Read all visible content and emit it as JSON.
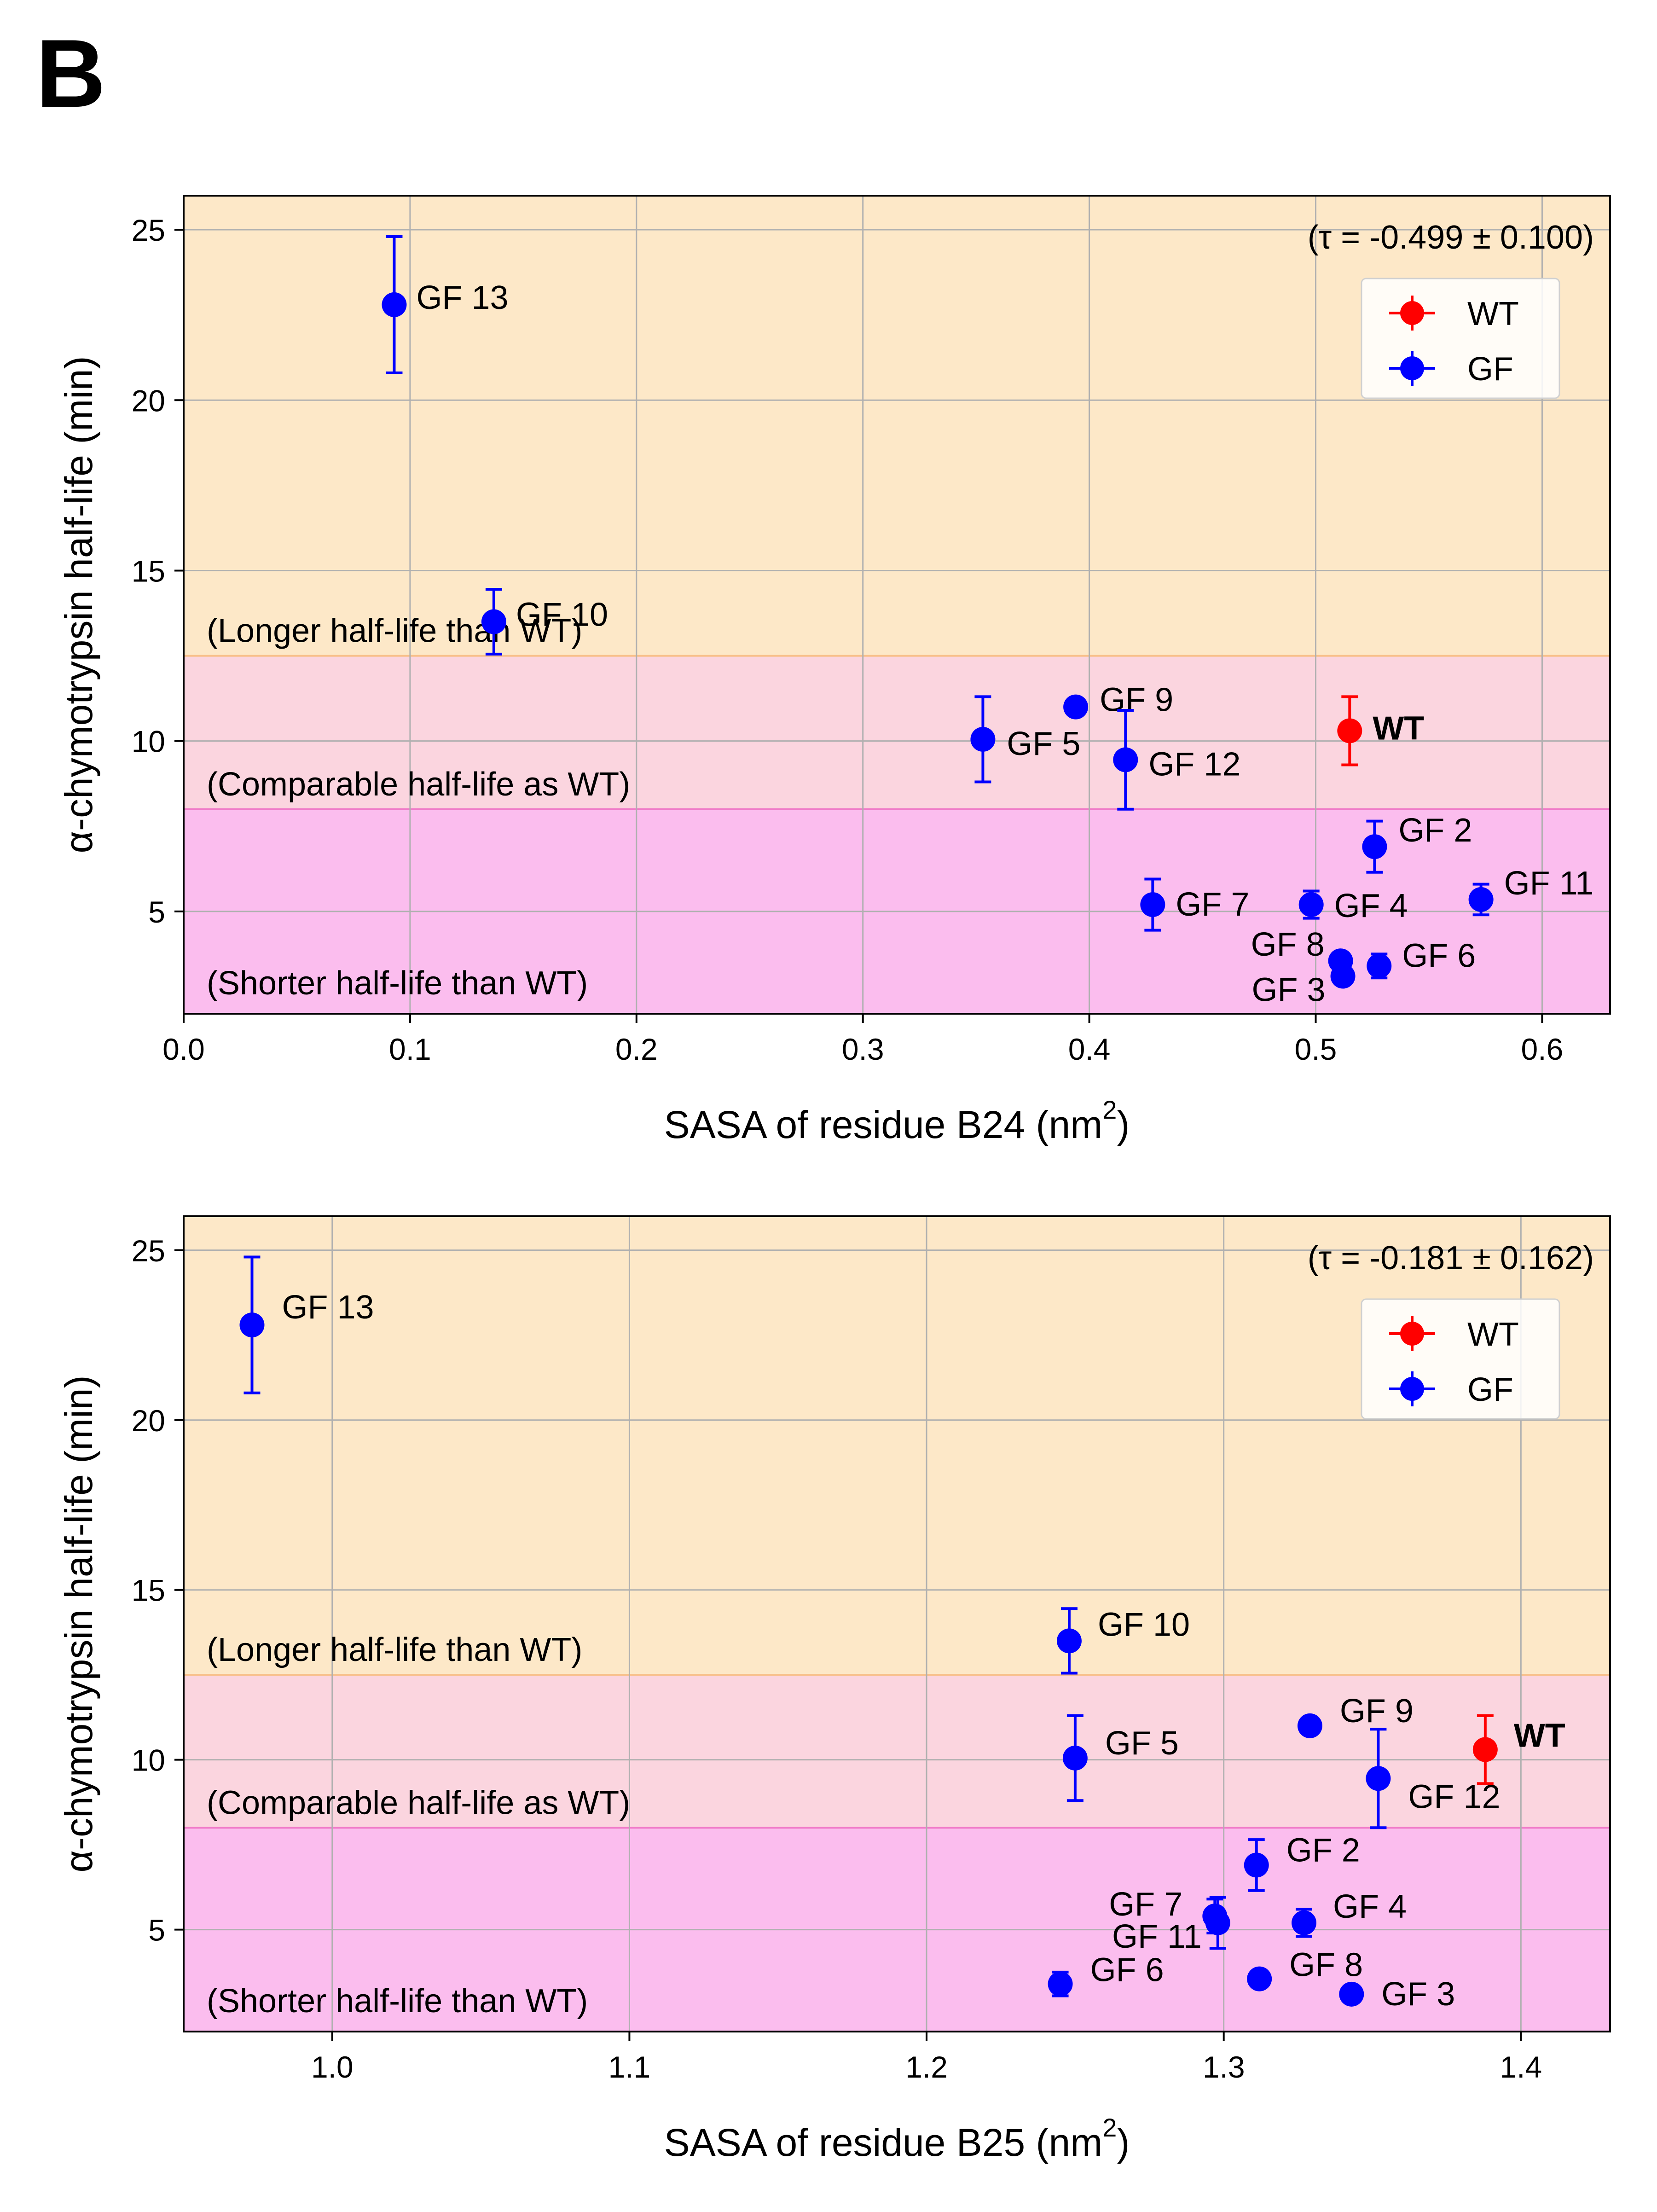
{
  "panel_label": "B",
  "colors": {
    "wt": "#ff0000",
    "gf": "#0000ff",
    "band_longer": "#fde8c8",
    "band_comparable": "#fbd5df",
    "band_shorter": "#fbbdee",
    "band_line_top": "#f8c08a",
    "band_line_bottom": "#f07ac8",
    "grid": "#b0b0b0"
  },
  "chart_data": [
    {
      "type": "scatter",
      "error_bars": true,
      "title": "",
      "xlabel": "SASA of residue B24 (nm",
      "xlabel_sup": "2",
      "xlabel_end": ")",
      "ylabel": "α-chymotrypsin half-life (min)",
      "xlim": [
        0.0,
        0.63
      ],
      "ylim": [
        2.0,
        26.0
      ],
      "xticks": [
        "0.0",
        "0.1",
        "0.2",
        "0.3",
        "0.4",
        "0.5",
        "0.6"
      ],
      "xtick_values": [
        0.0,
        0.1,
        0.2,
        0.3,
        0.4,
        0.5,
        0.6
      ],
      "yticks": [
        "5",
        "10",
        "15",
        "20",
        "25"
      ],
      "ytick_values": [
        5,
        10,
        15,
        20,
        25
      ],
      "grid": true,
      "tau_text": "(τ = -0.499 ± 0.100)",
      "legend": {
        "position": "upper right",
        "entries": [
          "WT",
          "GF"
        ]
      },
      "bands": [
        {
          "label": "(Longer half-life than WT)",
          "from": 12.5,
          "to": 26.0,
          "type": "longer"
        },
        {
          "label": "(Comparable half-life as WT)",
          "from": 8.0,
          "to": 12.5,
          "type": "comparable"
        },
        {
          "label": "(Shorter half-life than WT)",
          "from": 2.0,
          "to": 8.0,
          "type": "shorter"
        }
      ],
      "points": [
        {
          "label": "GF 13",
          "x": 0.093,
          "y": 22.8,
          "err": 2.0,
          "series": "GF"
        },
        {
          "label": "GF 10",
          "x": 0.137,
          "y": 13.5,
          "err": 0.95,
          "series": "GF"
        },
        {
          "label": "GF 9",
          "x": 0.394,
          "y": 11.0,
          "err": 0.0,
          "series": "GF"
        },
        {
          "label": "GF 5",
          "x": 0.353,
          "y": 10.05,
          "err": 1.25,
          "series": "GF"
        },
        {
          "label": "GF 12",
          "x": 0.416,
          "y": 9.45,
          "err": 1.45,
          "series": "GF"
        },
        {
          "label": "WT",
          "x": 0.515,
          "y": 10.3,
          "err": 1.0,
          "series": "WT"
        },
        {
          "label": "GF 2",
          "x": 0.526,
          "y": 6.9,
          "err": 0.75,
          "series": "GF"
        },
        {
          "label": "GF 7",
          "x": 0.428,
          "y": 5.2,
          "err": 0.75,
          "series": "GF"
        },
        {
          "label": "GF 4",
          "x": 0.498,
          "y": 5.2,
          "err": 0.4,
          "series": "GF"
        },
        {
          "label": "GF 11",
          "x": 0.573,
          "y": 5.35,
          "err": 0.45,
          "series": "GF"
        },
        {
          "label": "GF 8",
          "x": 0.511,
          "y": 3.55,
          "err": 0.0,
          "series": "GF"
        },
        {
          "label": "GF 3",
          "x": 0.512,
          "y": 3.1,
          "err": 0.0,
          "series": "GF"
        },
        {
          "label": "GF 6",
          "x": 0.528,
          "y": 3.4,
          "err": 0.35,
          "series": "GF"
        }
      ]
    },
    {
      "type": "scatter",
      "error_bars": true,
      "title": "",
      "xlabel": "SASA of residue B25 (nm",
      "xlabel_sup": "2",
      "xlabel_end": ")",
      "ylabel": "α-chymotrypsin half-life (min)",
      "xlim": [
        0.95,
        1.43
      ],
      "ylim": [
        2.0,
        26.0
      ],
      "xticks": [
        "1.0",
        "1.1",
        "1.2",
        "1.3",
        "1.4"
      ],
      "xtick_values": [
        1.0,
        1.1,
        1.2,
        1.3,
        1.4
      ],
      "yticks": [
        "5",
        "10",
        "15",
        "20",
        "25"
      ],
      "ytick_values": [
        5,
        10,
        15,
        20,
        25
      ],
      "grid": true,
      "tau_text": "(τ = -0.181 ± 0.162)",
      "legend": {
        "position": "upper right",
        "entries": [
          "WT",
          "GF"
        ]
      },
      "bands": [
        {
          "label": "(Longer half-life than WT)",
          "from": 12.5,
          "to": 26.0,
          "type": "longer"
        },
        {
          "label": "(Comparable half-life as WT)",
          "from": 8.0,
          "to": 12.5,
          "type": "comparable"
        },
        {
          "label": "(Shorter half-life than WT)",
          "from": 2.0,
          "to": 8.0,
          "type": "shorter"
        }
      ],
      "points": [
        {
          "label": "GF 13",
          "x": 0.973,
          "y": 22.8,
          "err": 2.0,
          "series": "GF"
        },
        {
          "label": "GF 10",
          "x": 1.248,
          "y": 13.5,
          "err": 0.95,
          "series": "GF"
        },
        {
          "label": "GF 5",
          "x": 1.25,
          "y": 10.05,
          "err": 1.25,
          "series": "GF"
        },
        {
          "label": "GF 9",
          "x": 1.329,
          "y": 11.0,
          "err": 0.0,
          "series": "GF"
        },
        {
          "label": "GF 12",
          "x": 1.352,
          "y": 9.45,
          "err": 1.45,
          "series": "GF"
        },
        {
          "label": "WT",
          "x": 1.388,
          "y": 10.3,
          "err": 1.0,
          "series": "WT"
        },
        {
          "label": "GF 2",
          "x": 1.311,
          "y": 6.9,
          "err": 0.75,
          "series": "GF"
        },
        {
          "label": "GF 7",
          "x": 1.297,
          "y": 5.4,
          "err": 0.5,
          "series": "GF"
        },
        {
          "label": "GF 11",
          "x": 1.298,
          "y": 5.2,
          "err": 0.75,
          "series": "GF"
        },
        {
          "label": "GF 4",
          "x": 1.327,
          "y": 5.2,
          "err": 0.4,
          "series": "GF"
        },
        {
          "label": "GF 6",
          "x": 1.245,
          "y": 3.4,
          "err": 0.35,
          "series": "GF"
        },
        {
          "label": "GF 8",
          "x": 1.312,
          "y": 3.55,
          "err": 0.0,
          "series": "GF"
        },
        {
          "label": "GF 3",
          "x": 1.343,
          "y": 3.1,
          "err": 0.0,
          "series": "GF"
        }
      ]
    }
  ]
}
